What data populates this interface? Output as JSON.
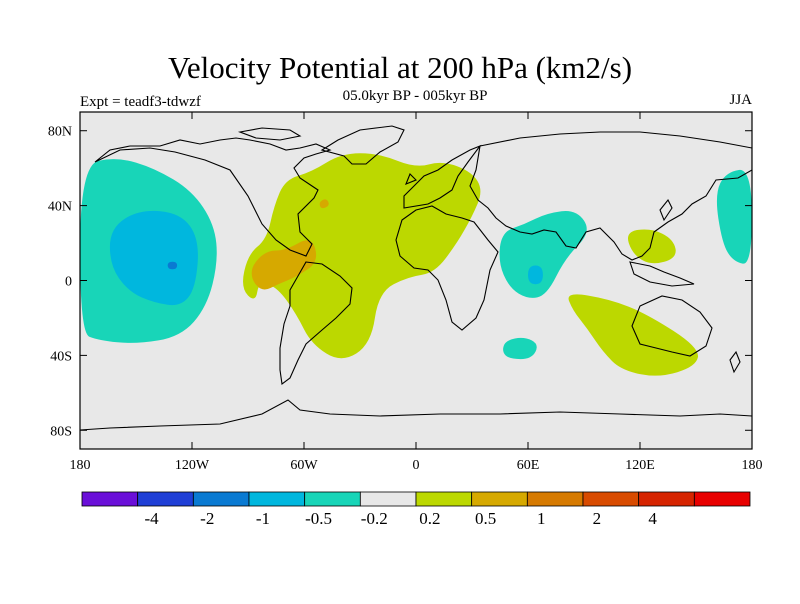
{
  "title": "Velocity Potential at 200 hPa (km2/s)",
  "subtitle": "05.0kyr BP - 005kyr BP",
  "left_label": "Expt = teadf3-tdwzf",
  "right_label": "JJA",
  "axes": {
    "lat_ticks": [
      {
        "label": "80N",
        "lat": 80
      },
      {
        "label": "40N",
        "lat": 40
      },
      {
        "label": "0",
        "lat": 0
      },
      {
        "label": "40S",
        "lat": -40
      },
      {
        "label": "80S",
        "lat": -80
      }
    ],
    "lon_ticks": [
      {
        "label": "180",
        "lon": -180
      },
      {
        "label": "120W",
        "lon": -120
      },
      {
        "label": "60W",
        "lon": -60
      },
      {
        "label": "0",
        "lon": 0
      },
      {
        "label": "60E",
        "lon": 60
      },
      {
        "label": "120E",
        "lon": 120
      },
      {
        "label": "180",
        "lon": 180
      }
    ]
  },
  "colorbar": {
    "colors": [
      "#6a0fd8",
      "#1f3fd6",
      "#0a7ad2",
      "#00b7de",
      "#18d5b8",
      "#e8e8e8",
      "#bcd800",
      "#d6a900",
      "#d67a00",
      "#d84b00",
      "#d62400",
      "#e80000"
    ],
    "labels": [
      "-4",
      "-2",
      "-1",
      "-0.5",
      "-0.2",
      "0.2",
      "0.5",
      "1",
      "2",
      "4"
    ]
  },
  "chart_data": {
    "type": "map",
    "title": "Velocity Potential at 200 hPa (km2/s)",
    "subtitle": "05.0kyr BP - 005kyr BP",
    "season": "JJA",
    "experiment": "Expt = teadf3-tdwzf",
    "xlim": [
      -180,
      180
    ],
    "ylim": [
      -90,
      90
    ],
    "levels": [
      -4,
      -2,
      -1,
      -0.5,
      -0.2,
      0.2,
      0.5,
      1,
      2,
      4
    ],
    "regions": [
      {
        "name": "north-pacific-negative",
        "class": "-0.5 to -0.2",
        "lonlat": [
          [
            -180,
            62
          ],
          [
            -160,
            66
          ],
          [
            -140,
            60
          ],
          [
            -120,
            48
          ],
          [
            -108,
            30
          ],
          [
            -106,
            10
          ],
          [
            -112,
            -14
          ],
          [
            -126,
            -30
          ],
          [
            -150,
            -34
          ],
          [
            -170,
            -32
          ],
          [
            -180,
            -28
          ]
        ]
      },
      {
        "name": "north-pacific-core",
        "class": "-1 to -0.5",
        "lonlat": [
          [
            -164,
            28
          ],
          [
            -148,
            38
          ],
          [
            -126,
            36
          ],
          [
            -116,
            22
          ],
          [
            -118,
            -4
          ],
          [
            -126,
            -14
          ],
          [
            -140,
            -12
          ],
          [
            -154,
            -6
          ],
          [
            -164,
            8
          ]
        ]
      },
      {
        "name": "north-pacific-spot",
        "class": "-2 to -1",
        "lonlat": [
          [
            -133,
            10
          ],
          [
            -128,
            10
          ],
          [
            -128,
            6
          ],
          [
            -133,
            6
          ]
        ]
      },
      {
        "name": "west-pacific-edge",
        "class": "-0.5 to -0.2",
        "lonlat": [
          [
            180,
            60
          ],
          [
            166,
            58
          ],
          [
            160,
            46
          ],
          [
            164,
            20
          ],
          [
            170,
            10
          ],
          [
            180,
            8
          ]
        ]
      },
      {
        "name": "atlantic-africa-positive",
        "class": "0.2 to 0.5",
        "lonlat": [
          [
            -70,
            54
          ],
          [
            -56,
            58
          ],
          [
            -40,
            68
          ],
          [
            -20,
            68
          ],
          [
            0,
            60
          ],
          [
            14,
            64
          ],
          [
            30,
            58
          ],
          [
            36,
            48
          ],
          [
            30,
            34
          ],
          [
            22,
            20
          ],
          [
            10,
            4
          ],
          [
            -4,
            2
          ],
          [
            -20,
            -6
          ],
          [
            -24,
            -34
          ],
          [
            -40,
            -44
          ],
          [
            -56,
            -34
          ],
          [
            -64,
            -18
          ],
          [
            -74,
            -4
          ],
          [
            -84,
            0
          ],
          [
            -86,
            -12
          ],
          [
            -94,
            -4
          ],
          [
            -90,
            14
          ],
          [
            -80,
            22
          ],
          [
            -76,
            40
          ]
        ]
      },
      {
        "name": "caribbean-positive",
        "class": "0.5 to 1",
        "lonlat": [
          [
            -88,
            8
          ],
          [
            -80,
            16
          ],
          [
            -70,
            16
          ],
          [
            -56,
            24
          ],
          [
            -52,
            10
          ],
          [
            -64,
            2
          ],
          [
            -74,
            -2
          ],
          [
            -82,
            -6
          ],
          [
            -88,
            0
          ]
        ]
      },
      {
        "name": "atlantic-spot",
        "class": "0.5 to 1",
        "lonlat": [
          [
            -52,
            42
          ],
          [
            -48,
            44
          ],
          [
            -46,
            40
          ],
          [
            -51,
            38
          ]
        ]
      },
      {
        "name": "indian-ocean-negative",
        "class": "-0.5 to -0.2",
        "lonlat": [
          [
            46,
            26
          ],
          [
            58,
            30
          ],
          [
            70,
            36
          ],
          [
            86,
            38
          ],
          [
            94,
            26
          ],
          [
            80,
            12
          ],
          [
            70,
            -8
          ],
          [
            60,
            -10
          ],
          [
            50,
            -4
          ],
          [
            44,
            10
          ]
        ]
      },
      {
        "name": "indian-ocean-core",
        "class": "-1 to -0.5",
        "lonlat": [
          [
            60,
            8
          ],
          [
            68,
            8
          ],
          [
            68,
            -2
          ],
          [
            60,
            -2
          ]
        ]
      },
      {
        "name": "southern-indian-negative",
        "class": "-0.5 to -0.2",
        "lonlat": [
          [
            48,
            -32
          ],
          [
            58,
            -30
          ],
          [
            66,
            -34
          ],
          [
            62,
            -42
          ],
          [
            50,
            -42
          ],
          [
            46,
            -38
          ]
        ]
      },
      {
        "name": "maritime-positive",
        "class": "0.2 to 0.5",
        "lonlat": [
          [
            80,
            -6
          ],
          [
            104,
            -10
          ],
          [
            124,
            -18
          ],
          [
            152,
            -36
          ],
          [
            150,
            -46
          ],
          [
            130,
            -52
          ],
          [
            110,
            -48
          ],
          [
            100,
            -38
          ],
          [
            92,
            -26
          ],
          [
            84,
            -16
          ]
        ]
      },
      {
        "name": "west-pacific-positive",
        "class": "0.2 to 0.5",
        "lonlat": [
          [
            112,
            26
          ],
          [
            126,
            28
          ],
          [
            138,
            22
          ],
          [
            140,
            12
          ],
          [
            126,
            8
          ],
          [
            116,
            14
          ]
        ]
      }
    ]
  }
}
